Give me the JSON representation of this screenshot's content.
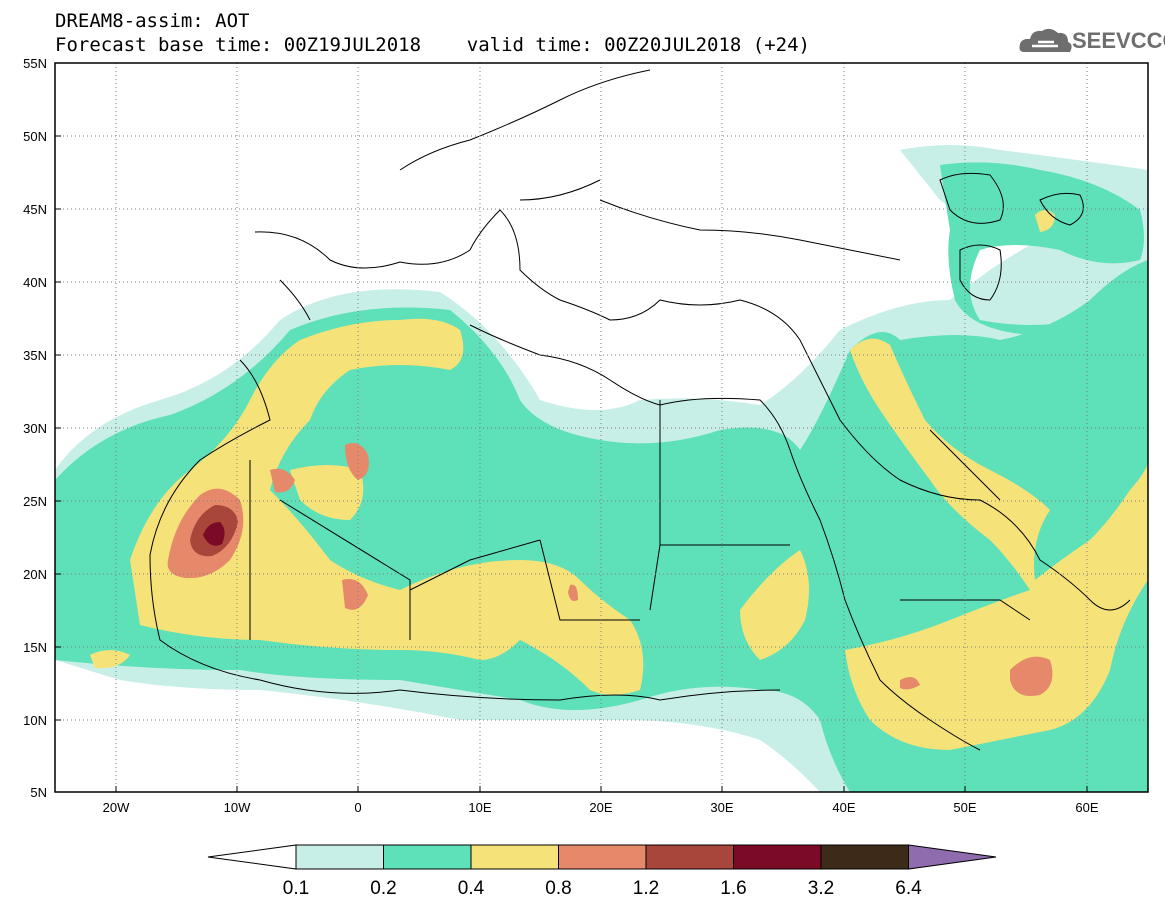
{
  "header": {
    "line1": "DREAM8-assim: AOT",
    "line2": "Forecast base time: 00Z19JUL2018    valid time: 00Z20JUL2018 (+24)"
  },
  "logo": {
    "text": "SEEVCCC",
    "icon": "cloud-icon"
  },
  "map": {
    "lon_range": [
      -25,
      65
    ],
    "lat_range": [
      5,
      55
    ],
    "lat_labels": [
      "55N",
      "50N",
      "45N",
      "40N",
      "35N",
      "30N",
      "25N",
      "20N",
      "15N",
      "10N",
      "5N"
    ],
    "lon_labels": [
      "20W",
      "10W",
      "0",
      "10E",
      "20E",
      "30E",
      "40E",
      "50E",
      "60E"
    ]
  },
  "colorbar": {
    "labels": [
      "0.1",
      "0.2",
      "0.4",
      "0.8",
      "1.2",
      "1.6",
      "3.2",
      "6.4"
    ],
    "colors": [
      "#ffffff",
      "#c8eee8",
      "#5ee0b8",
      "#f5e37a",
      "#e6896a",
      "#a8463c",
      "#7a0a25",
      "#3d2a18",
      "#8e6cae"
    ]
  },
  "colors": {
    "aot_0_1": "#c8eee8",
    "aot_0_2": "#5ee0b8",
    "aot_0_4": "#f5e37a",
    "aot_0_8": "#e6896a",
    "aot_1_2": "#a8463c",
    "aot_1_6": "#7a0a25"
  }
}
